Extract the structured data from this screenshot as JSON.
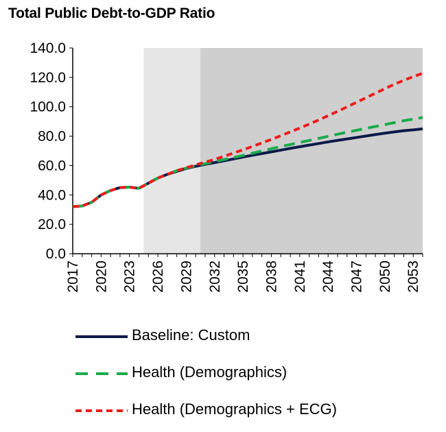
{
  "chart_data": {
    "type": "line",
    "title": "Total Public Debt-to-GDP Ratio",
    "xlabel": "",
    "ylabel": "",
    "ylim": [
      0,
      140
    ],
    "yticks": [
      "0.0",
      "20.0",
      "40.0",
      "60.0",
      "80.0",
      "100.0",
      "120.0",
      "140.0"
    ],
    "xticks": [
      "2017",
      "2020",
      "2023",
      "2026",
      "2029",
      "2032",
      "2035",
      "2038",
      "2041",
      "2044",
      "2047",
      "2050",
      "2053"
    ],
    "x_start": 2017,
    "x_end": 2054,
    "shaded_regions": [
      {
        "from": 2024.5,
        "to": 2030.5,
        "color": "#e6e6e6"
      },
      {
        "from": 2030.5,
        "to": 2054.5,
        "color": "#d0cfcf"
      }
    ],
    "x": [
      2017,
      2018,
      2019,
      2020,
      2021,
      2022,
      2023,
      2024,
      2025,
      2026,
      2027,
      2028,
      2029,
      2030,
      2031,
      2032,
      2033,
      2034,
      2035,
      2036,
      2037,
      2038,
      2039,
      2040,
      2041,
      2042,
      2043,
      2044,
      2045,
      2046,
      2047,
      2048,
      2049,
      2050,
      2051,
      2052,
      2053,
      2054
    ],
    "series": [
      {
        "name": "Baseline: Custom",
        "color": "#0b1a4a",
        "style": "solid",
        "values": [
          32.0,
          32.5,
          35.0,
          40.0,
          43.0,
          45.0,
          45.3,
          44.5,
          48.0,
          51.5,
          54.0,
          56.0,
          58.0,
          59.5,
          60.8,
          62.0,
          63.2,
          64.5,
          65.8,
          67.0,
          68.2,
          69.3,
          70.5,
          71.7,
          72.8,
          73.9,
          75.0,
          76.1,
          77.1,
          78.1,
          79.1,
          80.1,
          81.1,
          82.0,
          82.9,
          83.7,
          84.3,
          85.0
        ]
      },
      {
        "name": "Health (Demographics)",
        "color": "#1aaa4a",
        "style": "dashed",
        "values": [
          32.0,
          32.5,
          35.0,
          40.0,
          43.0,
          45.0,
          45.3,
          44.5,
          48.0,
          51.5,
          54.0,
          56.5,
          58.3,
          59.8,
          61.3,
          62.7,
          64.1,
          65.5,
          66.9,
          68.4,
          69.9,
          71.4,
          72.9,
          74.3,
          75.7,
          77.1,
          78.5,
          79.9,
          81.3,
          82.7,
          84.0,
          85.3,
          86.6,
          87.9,
          89.2,
          90.5,
          91.6,
          92.7
        ]
      },
      {
        "name": "Health (Demographics + ECG)",
        "color": "#ee1c1c",
        "style": "dotted",
        "values": [
          32.0,
          32.5,
          35.0,
          40.0,
          43.0,
          45.0,
          45.3,
          44.5,
          48.0,
          51.5,
          54.0,
          56.5,
          58.5,
          60.5,
          62.3,
          64.2,
          66.3,
          68.5,
          70.7,
          73.0,
          75.4,
          77.8,
          80.3,
          82.9,
          85.5,
          88.2,
          91.0,
          93.9,
          96.9,
          99.9,
          103.0,
          106.1,
          109.2,
          112.3,
          115.3,
          118.0,
          120.5,
          122.8
        ]
      }
    ]
  },
  "legend": [
    {
      "label": "Baseline: Custom"
    },
    {
      "label": "Health (Demographics)"
    },
    {
      "label": "Health (Demographics + ECG)"
    }
  ]
}
